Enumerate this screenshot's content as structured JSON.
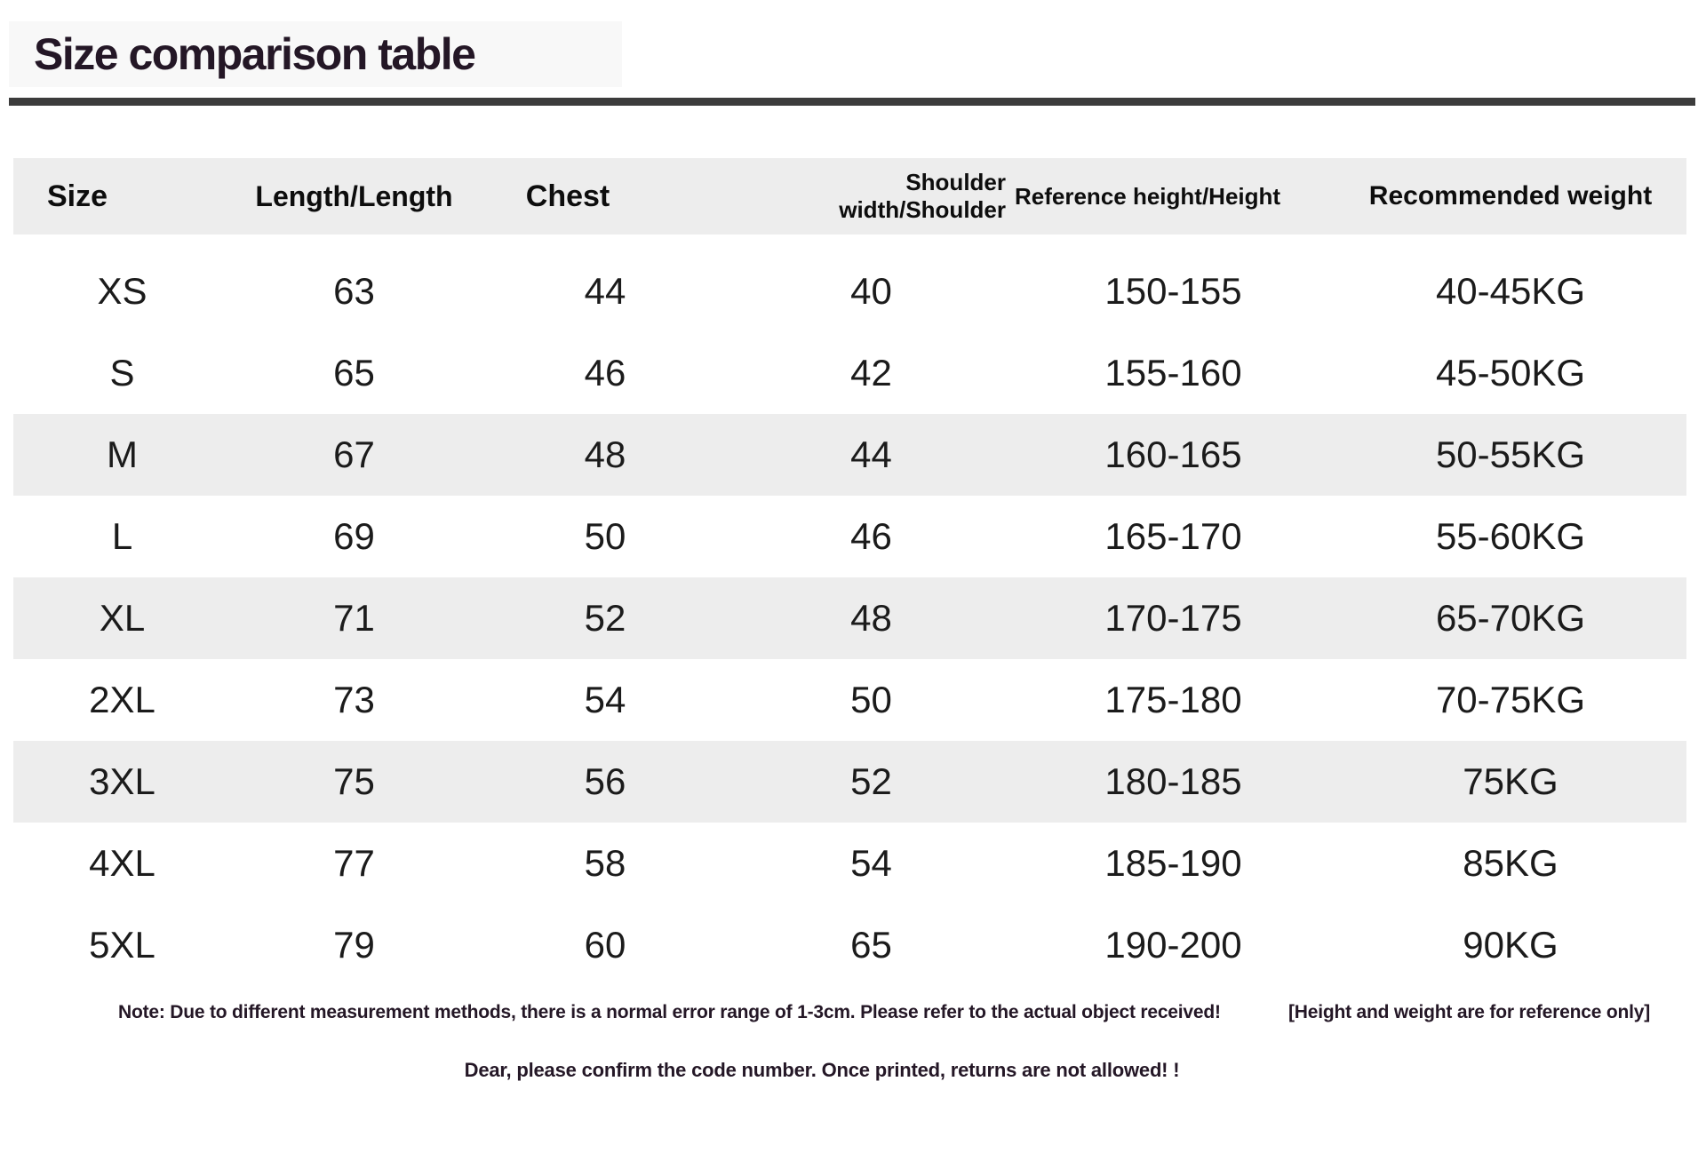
{
  "title": "Size comparison table",
  "table": {
    "columns": [
      {
        "key": "size",
        "label": "Size"
      },
      {
        "key": "length",
        "label": "Length/Length"
      },
      {
        "key": "chest",
        "label": "Chest"
      },
      {
        "key": "shoulder",
        "label": "Shoulder width/Shoulder"
      },
      {
        "key": "height",
        "label": "Reference height/Height"
      },
      {
        "key": "weight",
        "label": "Recommended weight"
      }
    ],
    "rows": [
      {
        "size": "XS",
        "length": "63",
        "chest": "44",
        "shoulder": "40",
        "height": "150-155",
        "weight": "40-45KG"
      },
      {
        "size": "S",
        "length": "65",
        "chest": "46",
        "shoulder": "42",
        "height": "155-160",
        "weight": "45-50KG"
      },
      {
        "size": "M",
        "length": "67",
        "chest": "48",
        "shoulder": "44",
        "height": "160-165",
        "weight": "50-55KG"
      },
      {
        "size": "L",
        "length": "69",
        "chest": "50",
        "shoulder": "46",
        "height": "165-170",
        "weight": "55-60KG"
      },
      {
        "size": "XL",
        "length": "71",
        "chest": "52",
        "shoulder": "48",
        "height": "170-175",
        "weight": "65-70KG"
      },
      {
        "size": "2XL",
        "length": "73",
        "chest": "54",
        "shoulder": "50",
        "height": "175-180",
        "weight": "70-75KG"
      },
      {
        "size": "3XL",
        "length": "75",
        "chest": "56",
        "shoulder": "52",
        "height": "180-185",
        "weight": "75KG"
      },
      {
        "size": "4XL",
        "length": "77",
        "chest": "58",
        "shoulder": "54",
        "height": "185-190",
        "weight": "85KG"
      },
      {
        "size": "5XL",
        "length": "79",
        "chest": "60",
        "shoulder": "65",
        "height": "190-200",
        "weight": "90KG"
      }
    ]
  },
  "notes": {
    "line1": "Note: Due to different measurement methods, there is a normal error range of 1-3cm. Please refer to the actual object received!",
    "line1_bracket": "[Height and weight are for reference only]",
    "line2": "Dear, please confirm the code number. Once printed, returns are not allowed! !"
  },
  "colors": {
    "ink": "#241726",
    "stripe": "#ededed",
    "divider": "#3c3c3c",
    "text": "#1b1b1b"
  }
}
